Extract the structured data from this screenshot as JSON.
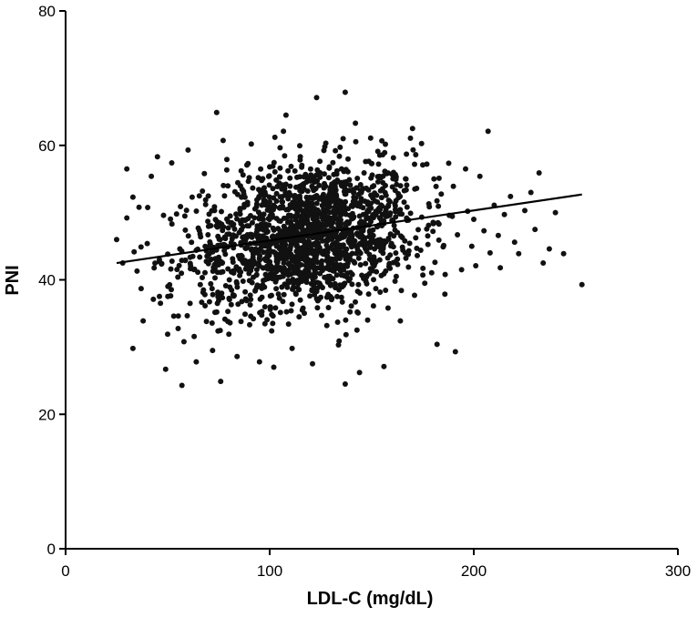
{
  "chart_data": {
    "type": "scatter",
    "title": "",
    "xlabel": "LDL-C (mg/dL)",
    "ylabel": "PNI",
    "xlim": [
      0,
      300
    ],
    "ylim": [
      0,
      80
    ],
    "xticks": [
      0,
      100,
      200,
      300
    ],
    "yticks": [
      0,
      20,
      40,
      60,
      80
    ],
    "grid": false,
    "legend": "none",
    "marker_color": "#111111",
    "trend_line": {
      "x": [
        25,
        253
      ],
      "y": [
        42.5,
        52.7
      ]
    },
    "series": [
      {
        "points_note": "",
        "points": [
          [
            25,
            46.0
          ],
          [
            28,
            42.5
          ],
          [
            30,
            56.5
          ],
          [
            30,
            49.2
          ],
          [
            33,
            52.3
          ],
          [
            33,
            29.8
          ],
          [
            35,
            41.3
          ],
          [
            36,
            50.8
          ],
          [
            37,
            38.7
          ],
          [
            38,
            33.9
          ],
          [
            40,
            45.4
          ],
          [
            42,
            55.4
          ],
          [
            43,
            37.1
          ],
          [
            45,
            58.3
          ],
          [
            46,
            43.0
          ],
          [
            48,
            49.6
          ],
          [
            49,
            26.7
          ],
          [
            50,
            31.9
          ],
          [
            52,
            57.4
          ],
          [
            53,
            34.6
          ],
          [
            55,
            40.4
          ],
          [
            56,
            44.6
          ],
          [
            57,
            24.3
          ],
          [
            58,
            30.8
          ],
          [
            60,
            59.3
          ],
          [
            61,
            36.5
          ],
          [
            62,
            52.3
          ],
          [
            64,
            27.8
          ],
          [
            65,
            47.7
          ],
          [
            66,
            39.3
          ],
          [
            68,
            55.8
          ],
          [
            69,
            33.8
          ],
          [
            70,
            42.4
          ],
          [
            72,
            29.5
          ],
          [
            73,
            50.3
          ],
          [
            74,
            64.9
          ],
          [
            75,
            36.9
          ],
          [
            76,
            24.9
          ],
          [
            78,
            45.2
          ],
          [
            79,
            57.9
          ],
          [
            80,
            31.9
          ],
          [
            82,
            41.3
          ],
          [
            83,
            53.1
          ],
          [
            84,
            28.6
          ],
          [
            86,
            47.4
          ],
          [
            88,
            38.2
          ],
          [
            90,
            55.2
          ],
          [
            91,
            60.2
          ],
          [
            92,
            34.2
          ],
          [
            94,
            44.0
          ],
          [
            95,
            27.8
          ],
          [
            97,
            49.7
          ],
          [
            98,
            40.8
          ],
          [
            100,
            56.8
          ],
          [
            101,
            32.4
          ],
          [
            102,
            27.0
          ],
          [
            104,
            46.2
          ],
          [
            106,
            53.6
          ],
          [
            107,
            37.8
          ],
          [
            108,
            64.5
          ],
          [
            110,
            43.5
          ],
          [
            111,
            29.8
          ],
          [
            112,
            51.0
          ],
          [
            114,
            39.6
          ],
          [
            115,
            58.3
          ],
          [
            116,
            35.5
          ],
          [
            118,
            48.4
          ],
          [
            119,
            44.2
          ],
          [
            120,
            54.7
          ],
          [
            121,
            27.5
          ],
          [
            122,
            41.0
          ],
          [
            123,
            67.1
          ],
          [
            124,
            50.1
          ],
          [
            125,
            37.4
          ],
          [
            126,
            45.8
          ],
          [
            127,
            59.8
          ],
          [
            128,
            33.2
          ],
          [
            129,
            52.6
          ],
          [
            130,
            43.1
          ],
          [
            131,
            48.8
          ],
          [
            132,
            39.4
          ],
          [
            133,
            56.2
          ],
          [
            134,
            30.9
          ],
          [
            135,
            46.7
          ],
          [
            136,
            61.0
          ],
          [
            137,
            24.5
          ],
          [
            137,
            67.9
          ],
          [
            138,
            42.0
          ],
          [
            139,
            53.3
          ],
          [
            140,
            36.1
          ],
          [
            141,
            49.2
          ],
          [
            142,
            63.3
          ],
          [
            143,
            44.6
          ],
          [
            144,
            26.2
          ],
          [
            145,
            51.7
          ],
          [
            146,
            40.2
          ],
          [
            147,
            57.6
          ],
          [
            148,
            34.0
          ],
          [
            149,
            47.1
          ],
          [
            150,
            42.8
          ],
          [
            151,
            54.0
          ],
          [
            152,
            38.7
          ],
          [
            153,
            59.1
          ],
          [
            155,
            45.5
          ],
          [
            156,
            27.1
          ],
          [
            157,
            50.7
          ],
          [
            158,
            35.8
          ],
          [
            159,
            43.7
          ],
          [
            160,
            55.7
          ],
          [
            161,
            48.1
          ],
          [
            162,
            40.5
          ],
          [
            163,
            52.8
          ],
          [
            164,
            33.9
          ],
          [
            165,
            46.3
          ],
          [
            167,
            58.7
          ],
          [
            168,
            41.9
          ],
          [
            169,
            49.9
          ],
          [
            170,
            62.5
          ],
          [
            171,
            37.7
          ],
          [
            172,
            53.6
          ],
          [
            174,
            44.4
          ],
          [
            175,
            57.1
          ],
          [
            176,
            39.5
          ],
          [
            178,
            51.3
          ],
          [
            180,
            47.2
          ],
          [
            181,
            42.6
          ],
          [
            182,
            30.4
          ],
          [
            183,
            55.1
          ],
          [
            185,
            44.9
          ],
          [
            186,
            40.8
          ],
          [
            188,
            49.6
          ],
          [
            190,
            53.9
          ],
          [
            191,
            29.3
          ],
          [
            192,
            46.7
          ],
          [
            194,
            41.5
          ],
          [
            196,
            56.5
          ],
          [
            197,
            50.2
          ],
          [
            199,
            45.0
          ],
          [
            200,
            49.0
          ],
          [
            201,
            42.1
          ],
          [
            203,
            55.4
          ],
          [
            205,
            47.3
          ],
          [
            207,
            62.1
          ],
          [
            208,
            44.0
          ],
          [
            210,
            51.1
          ],
          [
            212,
            46.6
          ],
          [
            213,
            41.8
          ],
          [
            215,
            49.7
          ],
          [
            218,
            52.4
          ],
          [
            220,
            45.6
          ],
          [
            222,
            43.9
          ],
          [
            225,
            50.3
          ],
          [
            228,
            53.0
          ],
          [
            230,
            47.5
          ],
          [
            232,
            55.9
          ],
          [
            234,
            42.5
          ],
          [
            237,
            44.6
          ],
          [
            240,
            50.0
          ],
          [
            244,
            43.9
          ],
          [
            253,
            39.3
          ]
        ]
      }
    ]
  }
}
